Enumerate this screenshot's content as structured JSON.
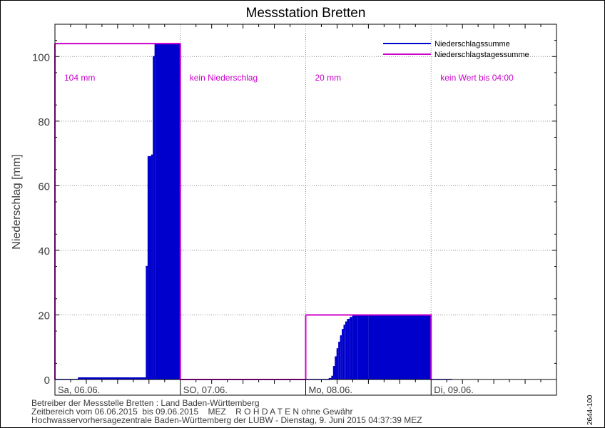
{
  "chart_data": {
    "type": "area",
    "title": "Messstation Bretten",
    "ylabel": "Niederschlag [mm]",
    "ylim": [
      0,
      110
    ],
    "yticks": [
      0,
      20,
      40,
      60,
      80,
      100
    ],
    "xlim": [
      "2015-06-06 00:00",
      "2015-06-10 00:00"
    ],
    "days": [
      "Sa, 06.06.",
      "SO, 07.06.",
      "Mo, 08.06.",
      "Di, 09.06."
    ],
    "grid": true,
    "legend_position": "top-right",
    "colors": {
      "summe": "#0000cc",
      "tagessumme": "#cc00cc",
      "daytext": "#cc00cc"
    },
    "series": [
      {
        "name": "Niederschlagssumme",
        "points": [
          [
            "2015-06-06 00:00",
            0.0
          ],
          [
            "2015-06-06 04:00",
            0.0
          ],
          [
            "2015-06-06 04:30",
            0.5
          ],
          [
            "2015-06-06 17:00",
            0.5
          ],
          [
            "2015-06-06 17:30",
            35.0
          ],
          [
            "2015-06-06 17:50",
            69.0
          ],
          [
            "2015-06-06 18:30",
            69.5
          ],
          [
            "2015-06-06 18:50",
            100.0
          ],
          [
            "2015-06-06 19:10",
            104.0
          ],
          [
            "2015-06-06 23:59",
            104.0
          ],
          [
            "2015-06-07 00:00",
            0.0
          ],
          [
            "2015-06-08 00:00",
            0.0
          ],
          [
            "2015-06-08 04:30",
            0.3
          ],
          [
            "2015-06-08 05:00",
            1.0
          ],
          [
            "2015-06-08 05:20",
            4.0
          ],
          [
            "2015-06-08 05:40",
            7.0
          ],
          [
            "2015-06-08 06:00",
            9.5
          ],
          [
            "2015-06-08 06:20",
            11.5
          ],
          [
            "2015-06-08 06:40",
            13.5
          ],
          [
            "2015-06-08 07:00",
            15.5
          ],
          [
            "2015-06-08 07:20",
            16.8
          ],
          [
            "2015-06-08 07:40",
            17.8
          ],
          [
            "2015-06-08 08:00",
            18.6
          ],
          [
            "2015-06-08 08:30",
            19.2
          ],
          [
            "2015-06-08 09:00",
            19.6
          ],
          [
            "2015-06-08 10:00",
            19.9
          ],
          [
            "2015-06-08 12:00",
            20.0
          ],
          [
            "2015-06-08 23:59",
            20.0
          ],
          [
            "2015-06-09 00:00",
            0.0
          ],
          [
            "2015-06-09 04:00",
            0.0
          ]
        ]
      },
      {
        "name": "Niederschlagstagessumme",
        "steps": [
          {
            "from": "2015-06-06 00:00",
            "to": "2015-06-07 00:00",
            "value": 104
          },
          {
            "from": "2015-06-07 00:00",
            "to": "2015-06-08 00:00",
            "value": 0
          },
          {
            "from": "2015-06-08 00:00",
            "to": "2015-06-09 00:00",
            "value": 20
          }
        ]
      }
    ],
    "annotations": [
      "104 mm",
      "kein Niederschlag",
      "20 mm",
      "kein Wert bis 04:00"
    ]
  },
  "footer": {
    "line1": "Betreiber der Messstelle Bretten : Land Baden-Württemberg",
    "line2": "Zeitbereich vom 06.06.2015  bis 09.06.2015    MEZ    R O H D A T E N ohne Gewähr",
    "line3": "Hochwasservorhersagezentrale Baden-Württemberg der LUBW - Dienstag, 9. Juni 2015 04:37:39 MEZ"
  },
  "side_code": "2644-100"
}
